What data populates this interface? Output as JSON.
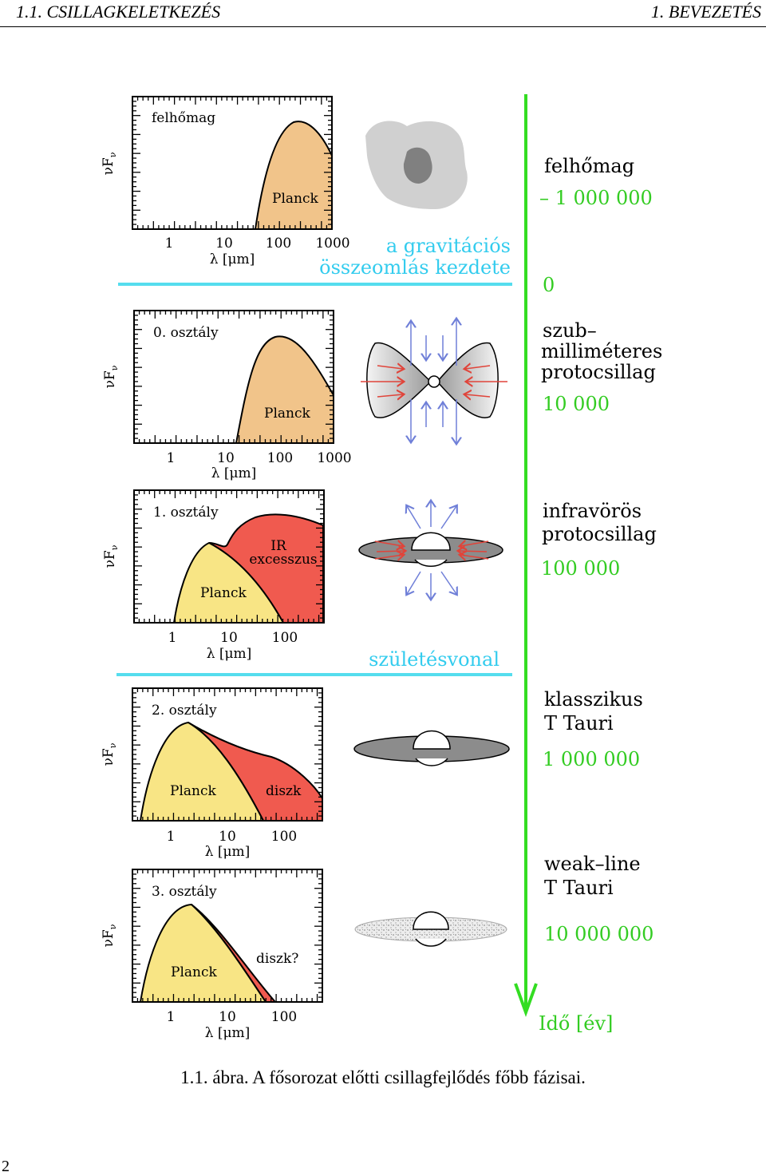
{
  "header": {
    "left": "1.1.  CSILLAGKELETKEZÉS",
    "right": "1.  BEVEZETÉS"
  },
  "figure": {
    "panels": [
      {
        "title": "felhőmag",
        "curve_label": "Planck",
        "ticks": [
          "1",
          "10",
          "100",
          "1000"
        ]
      },
      {
        "title": "0. osztály",
        "curve_label": "Planck",
        "ticks": [
          "1",
          "10",
          "100",
          "1000"
        ]
      },
      {
        "title": "1. osztály",
        "curve_label": "Planck",
        "excess_label_1": "IR",
        "excess_label_2": "excesszus",
        "ticks": [
          "1",
          "10",
          "100"
        ]
      },
      {
        "title": "2. osztály",
        "curve_label": "Planck",
        "excess_label": "diszk",
        "ticks": [
          "1",
          "10",
          "100"
        ]
      },
      {
        "title": "3. osztály",
        "curve_label": "Planck",
        "excess_label": "diszk?",
        "ticks": [
          "1",
          "10",
          "100"
        ]
      }
    ],
    "ylabel": "νF",
    "ylabel_sub": "ν",
    "xlabel": "λ [μm]",
    "boundaries": [
      {
        "line1": "a gravitációs",
        "line2": "összeomlás kezdete"
      },
      {
        "line1": "születésvonal"
      }
    ],
    "timeline": {
      "stages": [
        {
          "lines": [
            "felhőmag"
          ],
          "time": "– 1 000 000"
        },
        {
          "lines": [],
          "time": "0"
        },
        {
          "lines": [
            "szub–",
            "milliméteres",
            "protocsillag"
          ],
          "time": "10 000"
        },
        {
          "lines": [
            "infravörös",
            "protocsillag"
          ],
          "time": "100 000"
        },
        {
          "lines": [
            "klasszikus",
            "T Tauri"
          ],
          "time": "1 000 000"
        },
        {
          "lines": [
            "weak–line",
            "T Tauri"
          ],
          "time": "10 000 000"
        }
      ],
      "axis_label": "Idő [év]"
    },
    "colors": {
      "planck_orange": "#f1c48a",
      "planck_yellow": "#f8e585",
      "excess_red": "#f05a4f",
      "timeline_green": "#33dd22",
      "boundary_cyan": "#55ddee",
      "arrow_blue": "#6f7fd8",
      "arrow_red": "#e0443a"
    }
  },
  "caption": "1.1. ábra.  A fősorozat előtti csillagfejlődés főbb fázisai.",
  "page_number": "2"
}
